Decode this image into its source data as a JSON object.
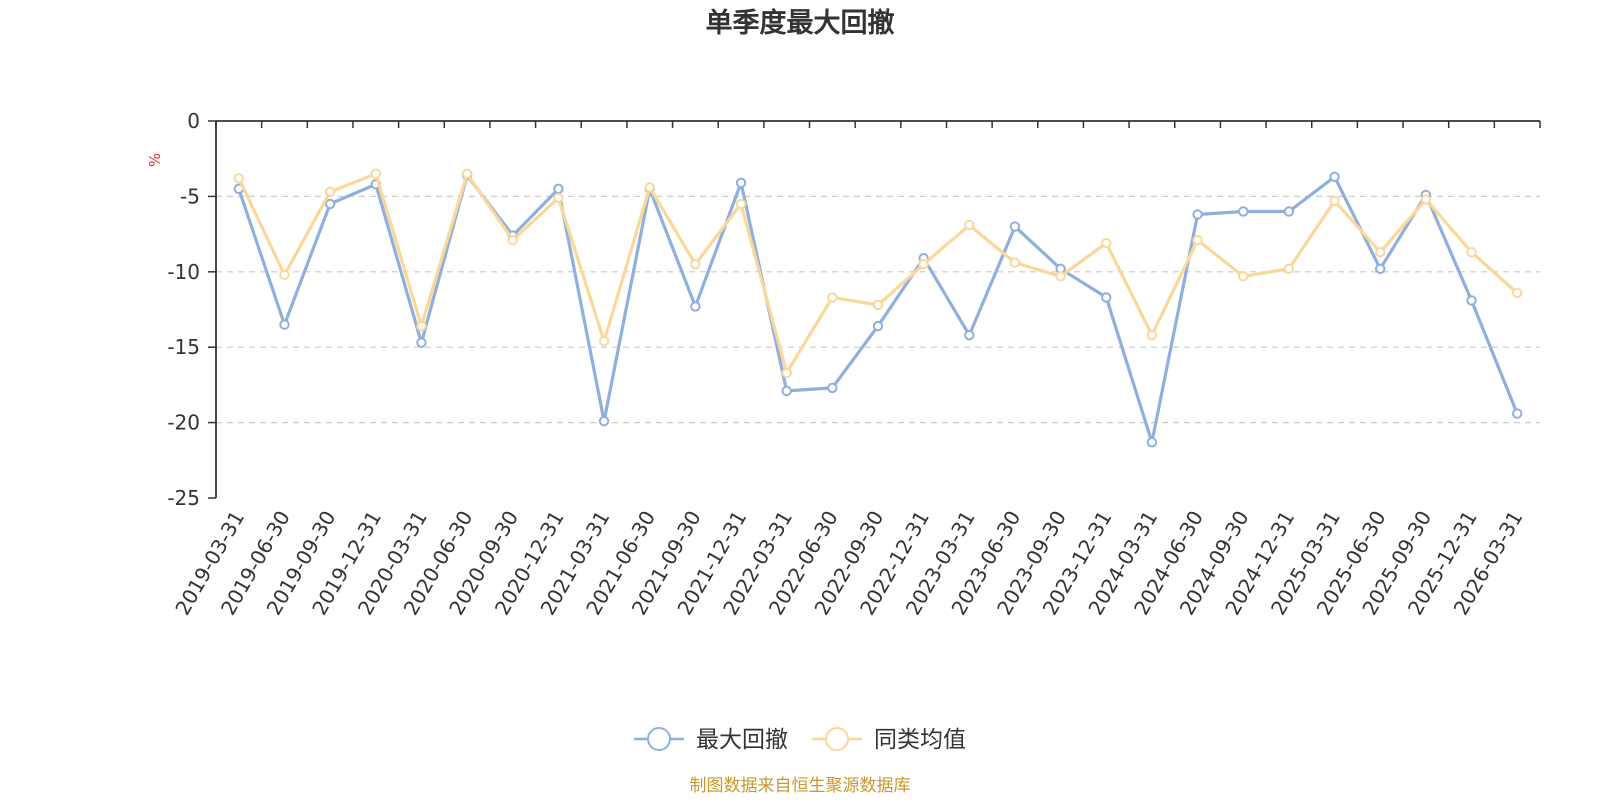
{
  "chart_data": {
    "type": "line",
    "title": "单季度最大回撤",
    "ylabel": "%",
    "ylim": [
      -25,
      0
    ],
    "yticks": [
      "0",
      "-5",
      "-10",
      "-15",
      "-20",
      "-25"
    ],
    "ytick_values": [
      0,
      -5,
      -10,
      -15,
      -20,
      -25
    ],
    "grid": true,
    "legend_position": "bottom",
    "categories": [
      "2019-03-31",
      "2019-06-30",
      "2019-09-30",
      "2019-12-31",
      "2020-03-31",
      "2020-06-30",
      "2020-09-30",
      "2020-12-31",
      "2021-03-31",
      "2021-06-30",
      "2021-09-30",
      "2021-12-31",
      "2022-03-31",
      "2022-06-30",
      "2022-09-30",
      "2022-12-31",
      "2023-03-31",
      "2023-06-30",
      "2023-09-30",
      "2023-12-31",
      "2024-03-31",
      "2024-06-30",
      "2024-09-30",
      "2024-12-31",
      "2025-03-31",
      "2025-06-30",
      "2025-09-30",
      "2025-12-31",
      "2026-03-31"
    ],
    "series": [
      {
        "name": "最大回撤",
        "color": "#8fafdc",
        "values": [
          -4.5,
          -13.5,
          -5.5,
          -4.2,
          -14.7,
          -3.6,
          -7.6,
          -4.5,
          -19.9,
          -4.5,
          -12.3,
          -4.1,
          -17.9,
          -17.7,
          -13.6,
          -9.1,
          -14.2,
          -7.0,
          -9.8,
          -11.7,
          -21.3,
          -6.2,
          -6.0,
          -6.0,
          -3.7,
          -9.8,
          -4.9,
          -11.9,
          -19.4
        ]
      },
      {
        "name": "同类均值",
        "color": "#fbd89a",
        "values": [
          -3.8,
          -10.2,
          -4.7,
          -3.5,
          -13.6,
          -3.5,
          -7.9,
          -5.1,
          -14.6,
          -4.4,
          -9.5,
          -5.5,
          -16.7,
          -11.7,
          -12.2,
          -9.5,
          -6.9,
          -9.4,
          -10.3,
          -8.1,
          -14.2,
          -7.9,
          -10.3,
          -9.8,
          -5.3,
          -8.7,
          -5.2,
          -8.7,
          -11.4
        ]
      }
    ]
  },
  "source_note": "制图数据来自恒生聚源数据库"
}
